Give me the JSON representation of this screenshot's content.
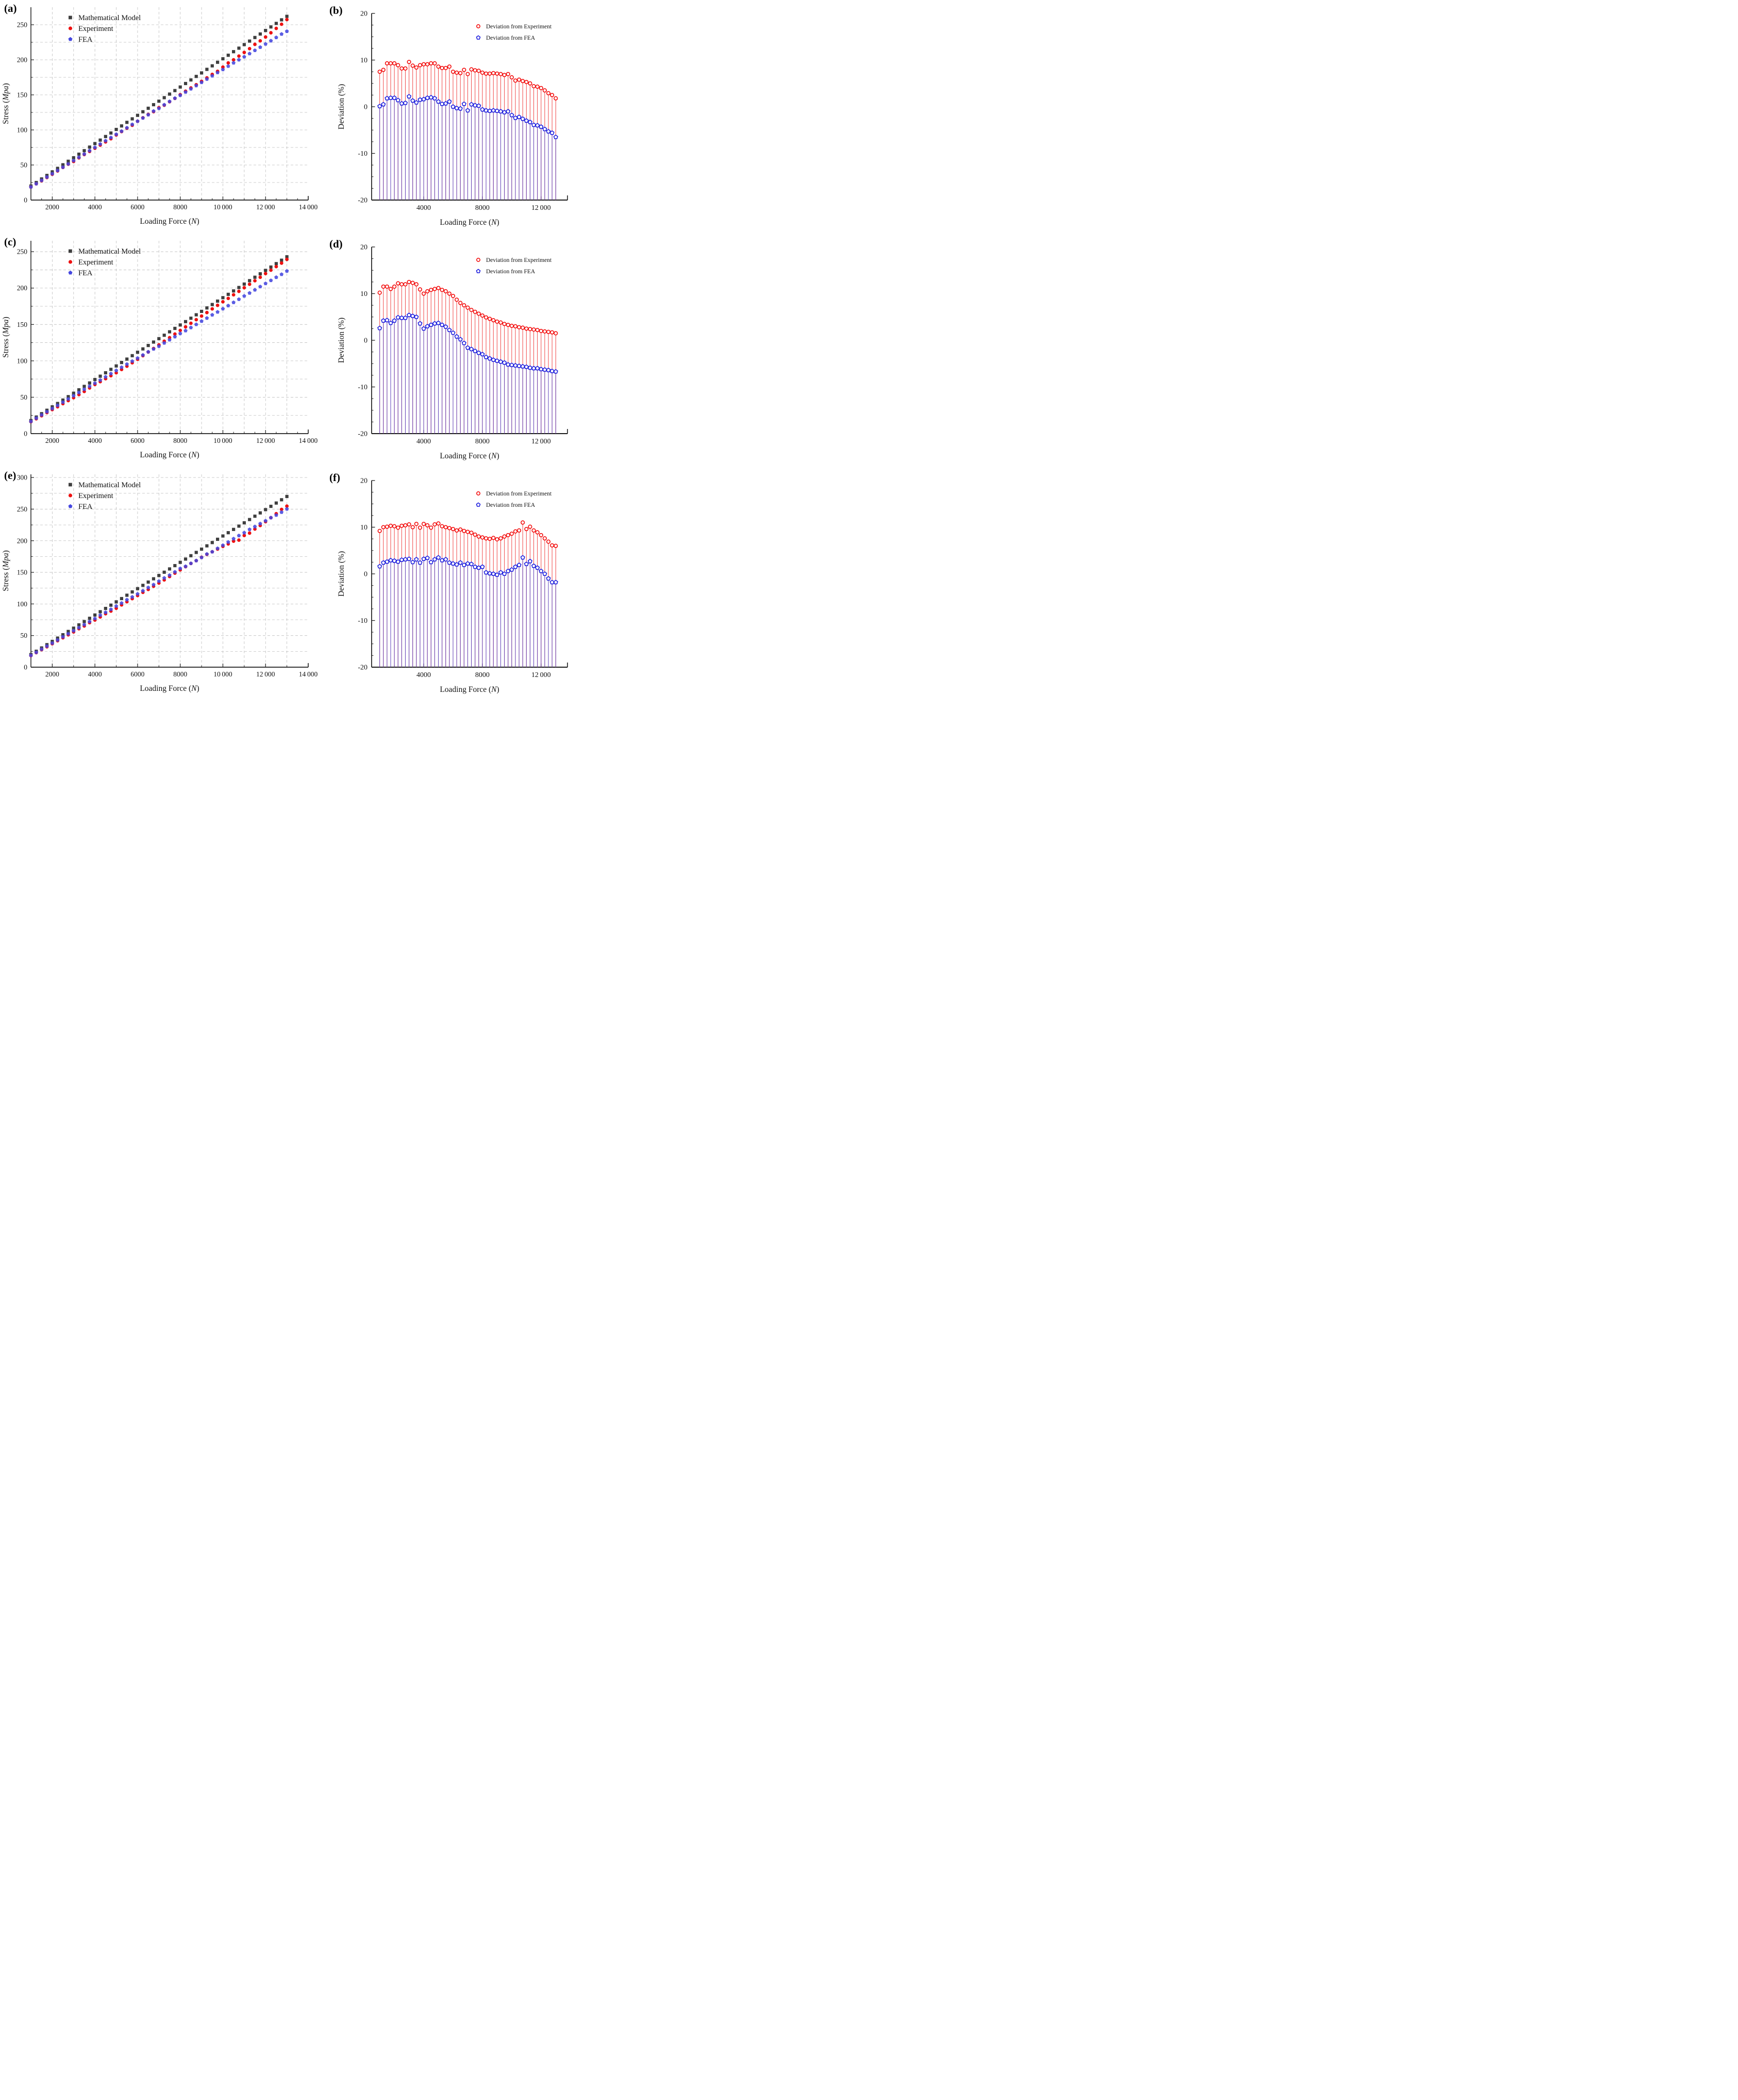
{
  "panels": [
    {
      "id": "a",
      "letter": "(a)",
      "kind": "stress"
    },
    {
      "id": "b",
      "letter": "(b)",
      "kind": "deviation"
    },
    {
      "id": "c",
      "letter": "(c)",
      "kind": "stress"
    },
    {
      "id": "d",
      "letter": "(d)",
      "kind": "deviation"
    },
    {
      "id": "e",
      "letter": "(e)",
      "kind": "stress"
    },
    {
      "id": "f",
      "letter": "(f)",
      "kind": "deviation"
    }
  ],
  "labels": {
    "stress_ylabel_pre": "Stress (",
    "stress_ylabel_unit": "Mpa",
    "stress_ylabel_post": ")",
    "deviation_ylabel": "Deviation (%)",
    "xlabel_pre": "Loading Force (",
    "xlabel_unit": "N",
    "xlabel_post": ")"
  },
  "legend_stress": [
    {
      "label": "Mathematical Model",
      "marker": "square",
      "color": "#3f3f3f"
    },
    {
      "label": "Experiment",
      "marker": "circle",
      "color": "#ee1111"
    },
    {
      "label": "FEA",
      "marker": "pentagon",
      "color": "#4547e0"
    }
  ],
  "legend_deviation": [
    {
      "label": "Deviation from Experiment",
      "marker": "circle-open",
      "color": "#f20000"
    },
    {
      "label": "Deviation from FEA",
      "marker": "pentagon-open",
      "color": "#1515dc"
    }
  ],
  "colors": {
    "axis": "#1b1b1b",
    "grid": "#bdbdbd",
    "model": "#3f3f3f",
    "experiment": "#ee1111",
    "fea": "#4547e0",
    "deviation_experiment": "#f20000",
    "deviation_fea": "#1515dc",
    "stem_red": "#f04343",
    "stem_blue": "#4340cf"
  },
  "chart_data": [
    {
      "row": 1,
      "stress_panel": "a",
      "deviation_panel": "b",
      "type_stress": "scatter",
      "type_deviation": "stem",
      "x_N": [
        1000,
        1250,
        1500,
        1750,
        2000,
        2250,
        2500,
        2750,
        3000,
        3250,
        3500,
        3750,
        4000,
        4250,
        4500,
        4750,
        5000,
        5250,
        5500,
        5750,
        6000,
        6250,
        6500,
        6750,
        7000,
        7250,
        7500,
        7750,
        8000,
        8250,
        8500,
        8750,
        9000,
        9250,
        9500,
        9750,
        10000,
        10250,
        10500,
        10750,
        11000,
        11250,
        11500,
        11750,
        12000,
        12250,
        12500,
        12750,
        13000
      ],
      "model_stress_MPa": [
        20.0,
        25.0,
        30.1,
        35.1,
        40.2,
        45.2,
        50.3,
        55.3,
        60.3,
        65.4,
        70.4,
        75.5,
        80.5,
        85.5,
        90.6,
        95.6,
        100.7,
        105.7,
        110.8,
        115.8,
        120.8,
        125.9,
        130.9,
        136.0,
        141.0,
        146.0,
        151.1,
        156.1,
        161.2,
        166.2,
        171.3,
        176.3,
        181.3,
        186.4,
        191.4,
        196.5,
        201.5,
        206.5,
        211.6,
        216.6,
        221.7,
        226.7,
        231.8,
        236.8,
        241.8,
        246.9,
        251.9,
        257.0,
        262.0
      ],
      "deviation_from_experiment_pct": [
        7.5,
        7.9,
        9.3,
        9.3,
        9.3,
        8.9,
        8.2,
        8.2,
        9.6,
        8.8,
        8.4,
        8.9,
        9.1,
        9.1,
        9.3,
        9.3,
        8.6,
        8.3,
        8.3,
        8.6,
        7.5,
        7.3,
        7.2,
        7.9,
        7.0,
        8.0,
        7.8,
        7.7,
        7.3,
        7.1,
        7.1,
        7.2,
        7.1,
        7.0,
        6.8,
        7.0,
        6.3,
        5.6,
        5.8,
        5.5,
        5.3,
        5.0,
        4.4,
        4.3,
        4.0,
        3.5,
        2.9,
        2.5,
        1.8
      ],
      "deviation_from_fea_pct": [
        0.1,
        0.5,
        1.8,
        1.9,
        1.9,
        1.4,
        0.7,
        0.8,
        2.2,
        1.3,
        0.9,
        1.5,
        1.6,
        1.9,
        2.0,
        1.8,
        1.1,
        0.6,
        0.7,
        1.1,
        0.0,
        -0.3,
        -0.4,
        0.6,
        -0.8,
        0.5,
        0.3,
        0.2,
        -0.6,
        -0.8,
        -0.9,
        -0.8,
        -0.9,
        -1.0,
        -1.2,
        -1.0,
        -1.8,
        -2.4,
        -2.2,
        -2.6,
        -3.0,
        -3.3,
        -3.9,
        -4.0,
        -4.3,
        -4.8,
        -5.3,
        -5.6,
        -6.5
      ],
      "stress_axis": {
        "xlim": [
          1000,
          14000
        ],
        "ylim": [
          0,
          275
        ],
        "xtick_values": [
          2000,
          4000,
          6000,
          8000,
          10000,
          12000,
          14000
        ],
        "xtick_labels": [
          "2000",
          "4000",
          "6000",
          "8000",
          "10 000",
          "12 000",
          "14 000"
        ],
        "ytick_step": 50,
        "y_minor_step": 25,
        "x_minor_step": 500,
        "grid_x_step": 1000,
        "grid_y_step": 25
      },
      "deviation_axis": {
        "xlim": [
          450,
          13800
        ],
        "ylim": [
          -20,
          20
        ],
        "xtick_values": [
          4000,
          8000,
          12000
        ],
        "xtick_labels": [
          "4000",
          "8000",
          "12 000"
        ],
        "x_minor_values": [
          2000,
          6000,
          10000
        ],
        "ytick_step": 10,
        "y_minor_step": 2.5,
        "stem_baseline": -20
      }
    },
    {
      "row": 2,
      "stress_panel": "c",
      "deviation_panel": "d",
      "type_stress": "scatter",
      "type_deviation": "stem",
      "x_N": [
        1000,
        1250,
        1500,
        1750,
        2000,
        2250,
        2500,
        2750,
        3000,
        3250,
        3500,
        3750,
        4000,
        4250,
        4500,
        4750,
        5000,
        5250,
        5500,
        5750,
        6000,
        6250,
        6500,
        6750,
        7000,
        7250,
        7500,
        7750,
        8000,
        8250,
        8500,
        8750,
        9000,
        9250,
        9500,
        9750,
        10000,
        10250,
        10500,
        10750,
        11000,
        11250,
        11500,
        11750,
        12000,
        12250,
        12500,
        12750,
        13000
      ],
      "model_stress_MPa": [
        18.0,
        22.7,
        27.4,
        32.1,
        36.8,
        41.4,
        46.1,
        50.8,
        55.5,
        60.2,
        64.9,
        69.6,
        74.3,
        78.9,
        83.6,
        88.3,
        93.0,
        97.7,
        102.4,
        107.1,
        111.8,
        116.4,
        121.1,
        125.8,
        130.5,
        135.2,
        139.9,
        144.6,
        149.3,
        153.9,
        158.6,
        163.3,
        168.0,
        172.7,
        177.4,
        182.1,
        186.8,
        191.4,
        196.1,
        200.8,
        205.5,
        210.2,
        214.9,
        219.6,
        224.3,
        228.9,
        233.6,
        238.3,
        243.0
      ],
      "deviation_from_experiment_pct": [
        10.2,
        11.5,
        11.5,
        11.0,
        11.5,
        12.2,
        12.0,
        12.0,
        12.5,
        12.3,
        12.0,
        10.9,
        10.0,
        10.5,
        10.8,
        11.0,
        11.2,
        10.8,
        10.5,
        10.0,
        9.5,
        8.7,
        8.0,
        7.5,
        7.0,
        6.5,
        6.1,
        5.7,
        5.3,
        4.9,
        4.6,
        4.3,
        4.0,
        3.8,
        3.5,
        3.3,
        3.1,
        3.0,
        2.8,
        2.7,
        2.5,
        2.4,
        2.3,
        2.2,
        2.0,
        1.9,
        1.8,
        1.7,
        1.5
      ],
      "deviation_from_fea_pct": [
        2.6,
        4.2,
        4.3,
        3.7,
        4.2,
        4.9,
        4.8,
        4.8,
        5.4,
        5.2,
        5.0,
        3.6,
        2.5,
        3.0,
        3.3,
        3.6,
        3.7,
        3.3,
        2.9,
        2.2,
        1.6,
        0.8,
        0.2,
        -0.6,
        -1.6,
        -1.9,
        -2.3,
        -2.7,
        -3.0,
        -3.6,
        -3.9,
        -4.2,
        -4.4,
        -4.6,
        -4.8,
        -5.2,
        -5.3,
        -5.4,
        -5.5,
        -5.6,
        -5.7,
        -5.9,
        -6.0,
        -6.0,
        -6.2,
        -6.3,
        -6.4,
        -6.6,
        -6.7
      ],
      "stress_axis": {
        "xlim": [
          1000,
          14000
        ],
        "ylim": [
          0,
          265
        ],
        "xtick_values": [
          2000,
          4000,
          6000,
          8000,
          10000,
          12000,
          14000
        ],
        "xtick_labels": [
          "2000",
          "4000",
          "6000",
          "8000",
          "10 000",
          "12 000",
          "14 000"
        ],
        "ytick_step": 50,
        "y_minor_step": 25,
        "x_minor_step": 500,
        "grid_x_step": 1000,
        "grid_y_step": 25
      },
      "deviation_axis": {
        "xlim": [
          450,
          13800
        ],
        "ylim": [
          -20,
          20
        ],
        "xtick_values": [
          4000,
          8000,
          12000
        ],
        "xtick_labels": [
          "4000",
          "8000",
          "12 000"
        ],
        "x_minor_values": [
          2000,
          6000,
          10000
        ],
        "ytick_step": 10,
        "y_minor_step": 2.5,
        "stem_baseline": -20
      }
    },
    {
      "row": 3,
      "stress_panel": "e",
      "deviation_panel": "f",
      "type_stress": "scatter",
      "type_deviation": "stem",
      "x_N": [
        1000,
        1250,
        1500,
        1750,
        2000,
        2250,
        2500,
        2750,
        3000,
        3250,
        3500,
        3750,
        4000,
        4250,
        4500,
        4750,
        5000,
        5250,
        5500,
        5750,
        6000,
        6250,
        6500,
        6750,
        7000,
        7250,
        7500,
        7750,
        8000,
        8250,
        8500,
        8750,
        9000,
        9250,
        9500,
        9750,
        10000,
        10250,
        10500,
        10750,
        11000,
        11250,
        11500,
        11750,
        12000,
        12250,
        12500,
        12750,
        13000
      ],
      "model_stress_MPa": [
        20.0,
        25.2,
        30.4,
        35.6,
        40.8,
        46.0,
        51.3,
        56.5,
        61.7,
        66.9,
        72.1,
        77.3,
        82.5,
        87.7,
        92.9,
        98.1,
        103.3,
        108.5,
        113.8,
        119.0,
        124.2,
        129.4,
        134.6,
        139.8,
        145.0,
        150.2,
        155.4,
        160.6,
        165.8,
        171.0,
        176.3,
        181.5,
        186.7,
        191.9,
        197.1,
        202.3,
        207.5,
        212.7,
        217.9,
        223.1,
        228.3,
        233.5,
        238.8,
        244.0,
        249.2,
        254.4,
        259.6,
        264.8,
        270.0
      ],
      "deviation_from_experiment_pct": [
        9.2,
        10.0,
        10.1,
        10.3,
        10.2,
        9.9,
        10.3,
        10.4,
        10.6,
        10.0,
        10.7,
        9.9,
        10.7,
        10.4,
        9.9,
        10.6,
        10.8,
        10.2,
        10.0,
        9.8,
        9.6,
        9.3,
        9.5,
        9.2,
        9.0,
        8.8,
        8.4,
        8.0,
        7.8,
        7.6,
        7.5,
        7.7,
        7.4,
        7.6,
        8.0,
        8.3,
        8.6,
        9.1,
        9.3,
        11.0,
        9.6,
        10.1,
        9.3,
        8.9,
        8.3,
        7.6,
        6.9,
        6.1,
        6.0
      ],
      "deviation_from_fea_pct": [
        1.6,
        2.4,
        2.6,
        2.9,
        2.8,
        2.6,
        3.0,
        3.1,
        3.2,
        2.5,
        3.1,
        2.4,
        3.2,
        3.4,
        2.5,
        3.1,
        3.5,
        2.9,
        3.1,
        2.4,
        2.2,
        2.0,
        2.4,
        1.9,
        2.2,
        2.1,
        1.5,
        1.3,
        1.5,
        0.3,
        0.1,
        0.0,
        -0.2,
        0.3,
        0.0,
        0.6,
        0.9,
        1.5,
        1.9,
        3.5,
        2.1,
        2.7,
        1.7,
        1.3,
        0.6,
        0.0,
        -1.0,
        -1.8,
        -1.8
      ],
      "stress_axis": {
        "xlim": [
          1000,
          14000
        ],
        "ylim": [
          0,
          305
        ],
        "xtick_values": [
          2000,
          4000,
          6000,
          8000,
          10000,
          12000,
          14000
        ],
        "xtick_labels": [
          "2000",
          "4000",
          "6000",
          "8000",
          "10 000",
          "12 000",
          "14 000"
        ],
        "ytick_step": 50,
        "y_minor_step": 25,
        "x_minor_step": 1000,
        "grid_x_step": 1000,
        "grid_y_step": 25
      },
      "deviation_axis": {
        "xlim": [
          450,
          13800
        ],
        "ylim": [
          -20,
          20
        ],
        "xtick_values": [
          4000,
          8000,
          12000
        ],
        "xtick_labels": [
          "4000",
          "8000",
          "12 000"
        ],
        "x_minor_values": [
          2000,
          6000,
          10000
        ],
        "ytick_step": 10,
        "y_minor_step": 2.5,
        "stem_baseline": -20
      }
    }
  ]
}
